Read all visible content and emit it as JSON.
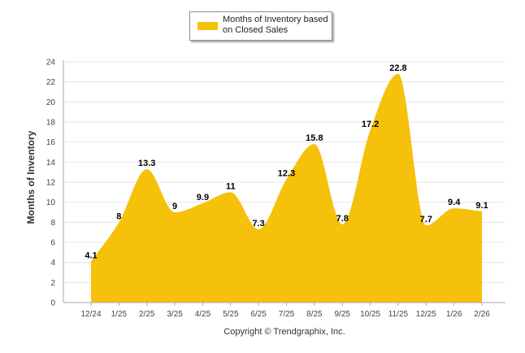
{
  "chart_data": {
    "type": "area",
    "title": "",
    "xlabel": "",
    "ylabel": "Months of Inventory",
    "categories": [
      "12/24",
      "1/25",
      "2/25",
      "3/25",
      "4/25",
      "5/25",
      "6/25",
      "7/25",
      "8/25",
      "9/25",
      "10/25",
      "11/25",
      "12/25",
      "1/26",
      "2/26"
    ],
    "series": [
      {
        "name": "Months of Inventory based on Closed Sales",
        "values": [
          4.1,
          8,
          13.3,
          9,
          9.9,
          11,
          7.3,
          12.3,
          15.8,
          7.8,
          17.2,
          22.8,
          7.7,
          9.4,
          9.1
        ]
      }
    ],
    "ylim": [
      0,
      24
    ],
    "yticks": [
      0,
      2,
      4,
      6,
      8,
      10,
      12,
      14,
      16,
      18,
      20,
      22,
      24
    ],
    "grid": true,
    "legend_position": "top-center",
    "colors": {
      "fill": "#F5C10A",
      "grid": "#e6e6e6",
      "axis": "#aaaaaa"
    }
  },
  "legend": {
    "label": "Months of Inventory based\non Closed Sales"
  },
  "footer": {
    "copyright": "Copyright © Trendgraphix, Inc."
  }
}
